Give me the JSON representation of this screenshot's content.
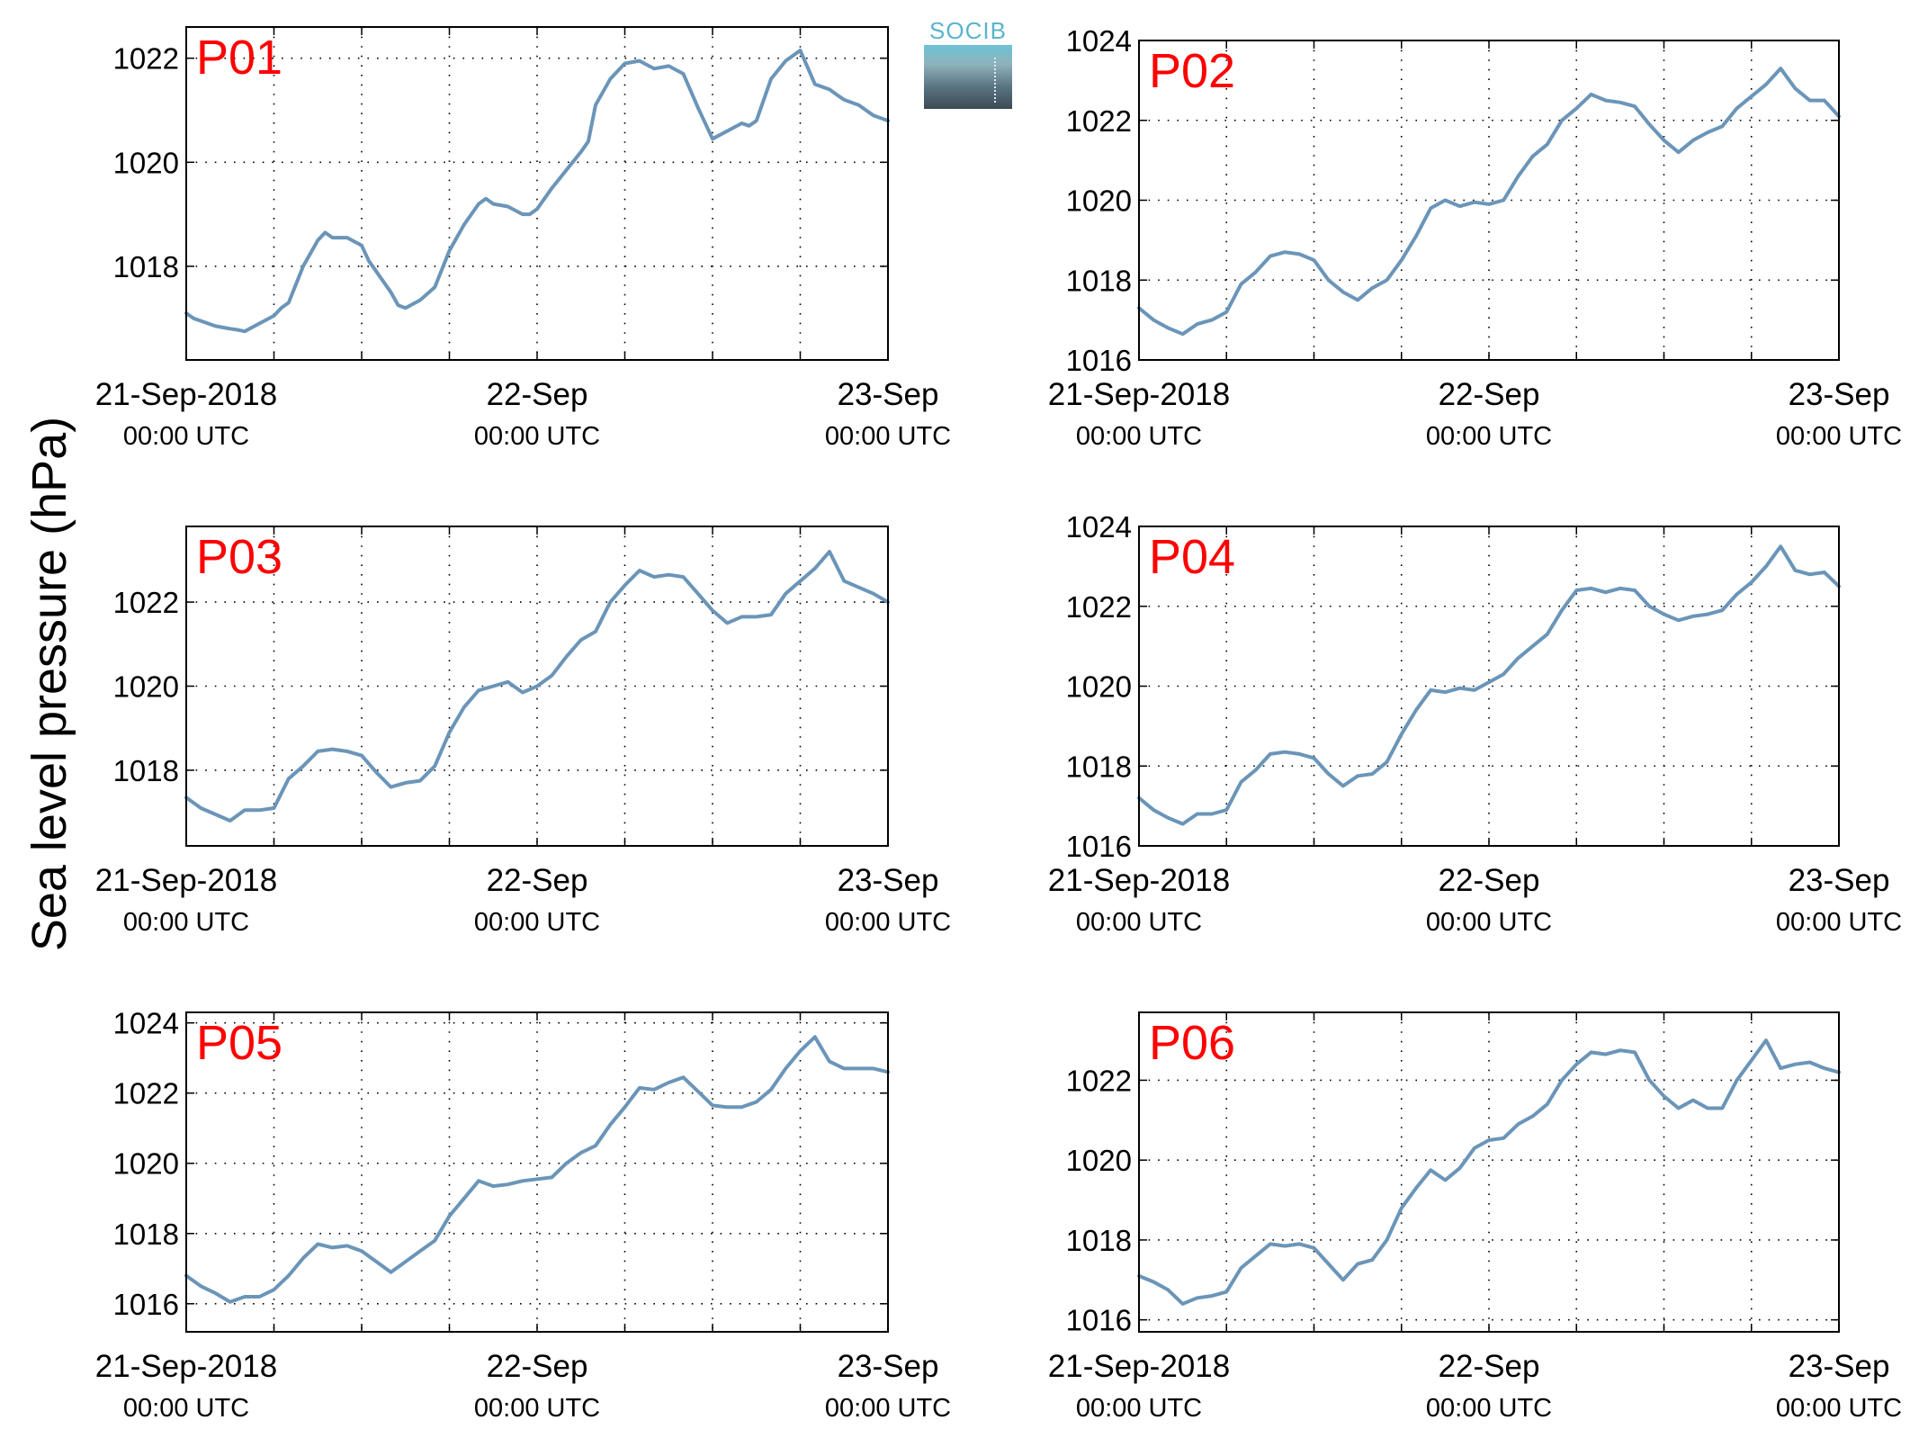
{
  "figure": {
    "ylabel": "Sea level pressure (hPa)",
    "logo": "SOCIB",
    "line_color": "#6b95b8",
    "panel_label_color": "#ff0000"
  },
  "chart_data": [
    {
      "type": "line",
      "title": "P01",
      "xlim": [
        0,
        48
      ],
      "ylim": [
        1016.2,
        1022.6
      ],
      "yticks": [
        1018,
        1020,
        1022
      ],
      "xtick_labels": [
        {
          "x": 0,
          "date": "21-Sep-2018",
          "time": "00:00 UTC"
        },
        {
          "x": 24,
          "date": "22-Sep",
          "time": "00:00 UTC"
        },
        {
          "x": 48,
          "date": "23-Sep",
          "time": "00:00 UTC"
        }
      ],
      "xgrid": [
        6,
        12,
        18,
        24,
        30,
        36,
        42
      ],
      "grid": true,
      "series": [
        {
          "x": [
            0,
            0.5,
            1,
            2,
            3,
            3.5,
            4,
            5,
            6,
            6.5,
            7,
            8,
            9,
            9.5,
            10,
            11,
            12,
            12.5,
            13,
            14,
            14.5,
            15,
            16,
            17,
            18,
            19,
            20,
            20.5,
            21,
            22,
            23,
            23.5,
            24,
            25,
            26,
            27,
            27.5,
            28,
            29,
            30,
            31,
            32,
            33,
            34,
            35,
            36,
            37,
            38,
            38.5,
            39,
            40,
            41,
            42,
            43,
            44,
            44.5,
            45,
            46,
            47,
            48
          ],
          "y": [
            1017.1,
            1017.0,
            1016.95,
            1016.85,
            1016.8,
            1016.78,
            1016.75,
            1016.9,
            1017.05,
            1017.2,
            1017.3,
            1018.0,
            1018.5,
            1018.65,
            1018.55,
            1018.55,
            1018.4,
            1018.1,
            1017.9,
            1017.5,
            1017.25,
            1017.2,
            1017.35,
            1017.6,
            1018.3,
            1018.8,
            1019.2,
            1019.3,
            1019.2,
            1019.15,
            1019.0,
            1019.0,
            1019.1,
            1019.5,
            1019.85,
            1020.2,
            1020.4,
            1021.1,
            1021.6,
            1021.9,
            1021.95,
            1021.8,
            1021.85,
            1021.7,
            1021.05,
            1020.45,
            1020.6,
            1020.75,
            1020.7,
            1020.8,
            1021.6,
            1021.95,
            1022.15,
            1021.5,
            1021.4,
            1021.3,
            1021.2,
            1021.1,
            1020.9,
            1020.8
          ]
        }
      ]
    },
    {
      "type": "line",
      "title": "P02",
      "xlim": [
        0,
        48
      ],
      "ylim": [
        1016,
        1024
      ],
      "yticks": [
        1016,
        1018,
        1020,
        1022,
        1024
      ],
      "xtick_labels": [
        {
          "x": 0,
          "date": "21-Sep-2018",
          "time": "00:00 UTC"
        },
        {
          "x": 24,
          "date": "22-Sep",
          "time": "00:00 UTC"
        },
        {
          "x": 48,
          "date": "23-Sep",
          "time": "00:00 UTC"
        }
      ],
      "xgrid": [
        6,
        12,
        18,
        24,
        30,
        36,
        42
      ],
      "grid": true,
      "series": [
        {
          "x": [
            0,
            1,
            2,
            3,
            4,
            5,
            6,
            7,
            8,
            9,
            10,
            11,
            12,
            13,
            14,
            15,
            16,
            17,
            18,
            19,
            20,
            21,
            22,
            23,
            24,
            25,
            26,
            27,
            28,
            29,
            30,
            31,
            32,
            33,
            34,
            35,
            36,
            37,
            38,
            39,
            40,
            41,
            42,
            43,
            44,
            45,
            46,
            47,
            48
          ],
          "y": [
            1017.3,
            1017.0,
            1016.8,
            1016.65,
            1016.9,
            1017.0,
            1017.2,
            1017.9,
            1018.2,
            1018.6,
            1018.7,
            1018.65,
            1018.5,
            1018.0,
            1017.7,
            1017.5,
            1017.8,
            1018.0,
            1018.5,
            1019.1,
            1019.8,
            1020.0,
            1019.85,
            1019.95,
            1019.9,
            1020.0,
            1020.6,
            1021.1,
            1021.4,
            1022.0,
            1022.3,
            1022.65,
            1022.5,
            1022.45,
            1022.35,
            1021.9,
            1021.5,
            1021.2,
            1021.5,
            1021.7,
            1021.85,
            1022.3,
            1022.6,
            1022.9,
            1023.3,
            1022.8,
            1022.5,
            1022.5,
            1022.1
          ]
        }
      ]
    },
    {
      "type": "line",
      "title": "P03",
      "xlim": [
        0,
        48
      ],
      "ylim": [
        1016.2,
        1023.8
      ],
      "yticks": [
        1018,
        1020,
        1022
      ],
      "xtick_labels": [
        {
          "x": 0,
          "date": "21-Sep-2018",
          "time": "00:00 UTC"
        },
        {
          "x": 24,
          "date": "22-Sep",
          "time": "00:00 UTC"
        },
        {
          "x": 48,
          "date": "23-Sep",
          "time": "00:00 UTC"
        }
      ],
      "xgrid": [
        6,
        12,
        18,
        24,
        30,
        36,
        42
      ],
      "grid": true,
      "series": [
        {
          "x": [
            0,
            1,
            2,
            3,
            4,
            5,
            6,
            7,
            8,
            9,
            10,
            11,
            12,
            13,
            14,
            15,
            16,
            17,
            18,
            19,
            20,
            21,
            22,
            23,
            24,
            25,
            26,
            27,
            28,
            29,
            30,
            31,
            32,
            33,
            34,
            35,
            36,
            37,
            38,
            39,
            40,
            41,
            42,
            43,
            44,
            45,
            46,
            47,
            48
          ],
          "y": [
            1017.35,
            1017.1,
            1016.95,
            1016.8,
            1017.05,
            1017.05,
            1017.1,
            1017.8,
            1018.1,
            1018.45,
            1018.5,
            1018.45,
            1018.35,
            1017.95,
            1017.6,
            1017.7,
            1017.75,
            1018.1,
            1018.9,
            1019.5,
            1019.9,
            1020.0,
            1020.1,
            1019.85,
            1020.0,
            1020.25,
            1020.7,
            1021.1,
            1021.3,
            1022.0,
            1022.4,
            1022.75,
            1022.6,
            1022.65,
            1022.6,
            1022.2,
            1021.8,
            1021.5,
            1021.65,
            1021.65,
            1021.7,
            1022.2,
            1022.5,
            1022.8,
            1023.2,
            1022.5,
            1022.35,
            1022.2,
            1022.0
          ]
        }
      ]
    },
    {
      "type": "line",
      "title": "P04",
      "xlim": [
        0,
        48
      ],
      "ylim": [
        1016,
        1024
      ],
      "yticks": [
        1016,
        1018,
        1020,
        1022,
        1024
      ],
      "xtick_labels": [
        {
          "x": 0,
          "date": "21-Sep-2018",
          "time": "00:00 UTC"
        },
        {
          "x": 24,
          "date": "22-Sep",
          "time": "00:00 UTC"
        },
        {
          "x": 48,
          "date": "23-Sep",
          "time": "00:00 UTC"
        }
      ],
      "xgrid": [
        6,
        12,
        18,
        24,
        30,
        36,
        42
      ],
      "grid": true,
      "series": [
        {
          "x": [
            0,
            1,
            2,
            3,
            4,
            5,
            6,
            7,
            8,
            9,
            10,
            11,
            12,
            13,
            14,
            15,
            16,
            17,
            18,
            19,
            20,
            21,
            22,
            23,
            24,
            25,
            26,
            27,
            28,
            29,
            30,
            31,
            32,
            33,
            34,
            35,
            36,
            37,
            38,
            39,
            40,
            41,
            42,
            43,
            44,
            45,
            46,
            47,
            48
          ],
          "y": [
            1017.2,
            1016.9,
            1016.7,
            1016.55,
            1016.8,
            1016.8,
            1016.9,
            1017.6,
            1017.9,
            1018.3,
            1018.35,
            1018.3,
            1018.2,
            1017.8,
            1017.5,
            1017.75,
            1017.8,
            1018.1,
            1018.8,
            1019.4,
            1019.9,
            1019.85,
            1019.95,
            1019.9,
            1020.1,
            1020.3,
            1020.7,
            1021.0,
            1021.3,
            1021.9,
            1022.4,
            1022.45,
            1022.35,
            1022.45,
            1022.4,
            1022.0,
            1021.8,
            1021.65,
            1021.75,
            1021.8,
            1021.9,
            1022.3,
            1022.6,
            1023.0,
            1023.5,
            1022.9,
            1022.8,
            1022.85,
            1022.5
          ]
        }
      ]
    },
    {
      "type": "line",
      "title": "P05",
      "xlim": [
        0,
        48
      ],
      "ylim": [
        1015.2,
        1024.3
      ],
      "yticks": [
        1016,
        1018,
        1020,
        1022,
        1024
      ],
      "xtick_labels": [
        {
          "x": 0,
          "date": "21-Sep-2018",
          "time": "00:00 UTC"
        },
        {
          "x": 24,
          "date": "22-Sep",
          "time": "00:00 UTC"
        },
        {
          "x": 48,
          "date": "23-Sep",
          "time": "00:00 UTC"
        }
      ],
      "xgrid": [
        6,
        12,
        18,
        24,
        30,
        36,
        42
      ],
      "grid": true,
      "series": [
        {
          "x": [
            0,
            1,
            2,
            3,
            4,
            5,
            6,
            7,
            8,
            9,
            10,
            11,
            12,
            13,
            14,
            15,
            16,
            17,
            18,
            19,
            20,
            21,
            22,
            23,
            24,
            25,
            26,
            27,
            28,
            29,
            30,
            31,
            32,
            33,
            34,
            35,
            36,
            37,
            38,
            39,
            40,
            41,
            42,
            43,
            44,
            45,
            46,
            47,
            48
          ],
          "y": [
            1016.8,
            1016.5,
            1016.3,
            1016.05,
            1016.2,
            1016.2,
            1016.4,
            1016.8,
            1017.3,
            1017.7,
            1017.6,
            1017.65,
            1017.5,
            1017.2,
            1016.9,
            1017.2,
            1017.5,
            1017.8,
            1018.5,
            1019.0,
            1019.5,
            1019.35,
            1019.4,
            1019.5,
            1019.55,
            1019.6,
            1020.0,
            1020.3,
            1020.5,
            1021.1,
            1021.6,
            1022.15,
            1022.1,
            1022.3,
            1022.45,
            1022.05,
            1021.65,
            1021.6,
            1021.6,
            1021.75,
            1022.1,
            1022.7,
            1023.2,
            1023.6,
            1022.9,
            1022.7,
            1022.7,
            1022.7,
            1022.6
          ]
        }
      ]
    },
    {
      "type": "line",
      "title": "P06",
      "xlim": [
        0,
        48
      ],
      "ylim": [
        1015.7,
        1023.7
      ],
      "yticks": [
        1016,
        1018,
        1020,
        1022
      ],
      "xtick_labels": [
        {
          "x": 0,
          "date": "21-Sep-2018",
          "time": "00:00 UTC"
        },
        {
          "x": 24,
          "date": "22-Sep",
          "time": "00:00 UTC"
        },
        {
          "x": 48,
          "date": "23-Sep",
          "time": "00:00 UTC"
        }
      ],
      "xgrid": [
        6,
        12,
        18,
        24,
        30,
        36,
        42
      ],
      "grid": true,
      "series": [
        {
          "x": [
            0,
            1,
            2,
            3,
            4,
            5,
            6,
            7,
            8,
            9,
            10,
            11,
            12,
            13,
            14,
            15,
            16,
            17,
            18,
            19,
            20,
            21,
            22,
            23,
            24,
            25,
            26,
            27,
            28,
            29,
            30,
            31,
            32,
            33,
            34,
            35,
            36,
            37,
            38,
            39,
            40,
            41,
            42,
            43,
            44,
            45,
            46,
            47,
            48
          ],
          "y": [
            1017.1,
            1016.95,
            1016.75,
            1016.4,
            1016.55,
            1016.6,
            1016.7,
            1017.3,
            1017.6,
            1017.9,
            1017.85,
            1017.9,
            1017.8,
            1017.4,
            1017.0,
            1017.4,
            1017.5,
            1018.0,
            1018.8,
            1019.3,
            1019.75,
            1019.5,
            1019.8,
            1020.3,
            1020.5,
            1020.55,
            1020.9,
            1021.1,
            1021.4,
            1022.0,
            1022.4,
            1022.7,
            1022.65,
            1022.75,
            1022.7,
            1022.0,
            1021.6,
            1021.3,
            1021.5,
            1021.3,
            1021.3,
            1022.0,
            1022.5,
            1023.0,
            1022.3,
            1022.4,
            1022.45,
            1022.3,
            1022.2
          ]
        }
      ]
    }
  ]
}
